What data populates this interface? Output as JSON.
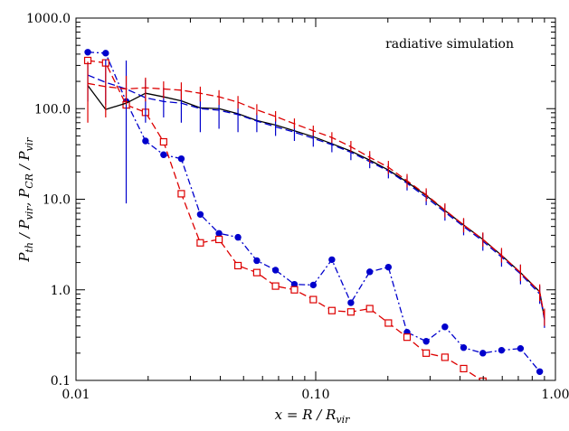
{
  "chart_data": {
    "type": "line",
    "annotation": "radiative simulation",
    "xlabel": {
      "main": "x = R / R",
      "sub": "vir"
    },
    "ylabel": {
      "p1": "P",
      "s1": "th",
      "p2": " / P",
      "s2": "vir",
      "p3": ",  P",
      "s3": "CR",
      "p4": " / P",
      "s4": "vir"
    },
    "xscale": "log",
    "yscale": "log",
    "xlim": [
      0.01,
      1.0
    ],
    "ylim": [
      0.1,
      1000
    ],
    "xticks": [
      0.01,
      0.1,
      1.0
    ],
    "xtick_labels": [
      "0.01",
      "0.10",
      "1.00"
    ],
    "yticks": [
      0.1,
      1,
      10,
      100,
      1000
    ],
    "ytick_labels": [
      "0.1",
      "1.0",
      "10.0",
      "100.0",
      "1000.0"
    ],
    "grid": false,
    "legend": "none",
    "series": [
      {
        "color": "#0000cc",
        "linestyle": "dashdot",
        "marker": "circle-filled",
        "x": [
          0.0112,
          0.0133,
          0.0162,
          0.0195,
          0.0232,
          0.0275,
          0.033,
          0.0395,
          0.0474,
          0.0568,
          0.068,
          0.0815,
          0.0977,
          0.1168,
          0.1402,
          0.168,
          0.201,
          0.2405,
          0.289,
          0.346,
          0.414,
          0.498,
          0.596,
          0.715,
          0.86
        ],
        "y": [
          420,
          410,
          120,
          44,
          31,
          28,
          6.8,
          4.2,
          3.8,
          2.1,
          1.65,
          1.15,
          1.13,
          2.15,
          0.72,
          1.58,
          1.78,
          0.34,
          0.27,
          0.39,
          0.23,
          0.2,
          0.215,
          0.225,
          0.125
        ]
      },
      {
        "color": "#dd0000",
        "linestyle": "dashed",
        "marker": "square-open",
        "x": [
          0.0112,
          0.0133,
          0.0162,
          0.0195,
          0.0232,
          0.0275,
          0.033,
          0.0395,
          0.0474,
          0.0568,
          0.068,
          0.0815,
          0.0977,
          0.1168,
          0.1402,
          0.168,
          0.201,
          0.2405,
          0.289,
          0.346,
          0.414,
          0.498
        ],
        "y": [
          340,
          320,
          110,
          91,
          43,
          11.5,
          3.3,
          3.6,
          1.85,
          1.55,
          1.1,
          1.0,
          0.78,
          0.59,
          0.57,
          0.62,
          0.43,
          0.3,
          0.2,
          0.18,
          0.135,
          0.098
        ]
      },
      {
        "color": "#000000",
        "linestyle": "solid",
        "x": [
          0.0112,
          0.0133,
          0.0162,
          0.0195,
          0.0232,
          0.0275,
          0.033,
          0.0395,
          0.0474,
          0.0568,
          0.068,
          0.0815,
          0.0977,
          0.1168,
          0.1402,
          0.168,
          0.201,
          0.2405,
          0.289,
          0.346,
          0.414,
          0.498,
          0.596,
          0.715,
          0.86,
          0.9
        ],
        "y": [
          180,
          98,
          115,
          148,
          135,
          122,
          102,
          100,
          88,
          74,
          66,
          57,
          49,
          41,
          34,
          27,
          21,
          15.5,
          11,
          7.5,
          5.2,
          3.6,
          2.4,
          1.55,
          0.95,
          0.48
        ]
      },
      {
        "color": "#0000cc",
        "linestyle": "dashed",
        "x": [
          0.0112,
          0.0133,
          0.0162,
          0.0195,
          0.0232,
          0.0275,
          0.033,
          0.0395,
          0.0474,
          0.0568,
          0.068,
          0.0815,
          0.0977,
          0.1168,
          0.1402,
          0.168,
          0.201,
          0.2405,
          0.289,
          0.346,
          0.414,
          0.498,
          0.596,
          0.715,
          0.86,
          0.9
        ],
        "y": [
          235,
          195,
          165,
          132,
          120,
          115,
          100,
          96,
          86,
          73,
          63,
          55,
          47,
          40,
          33,
          26,
          20.5,
          15,
          10.5,
          7.2,
          5.0,
          3.45,
          2.3,
          1.5,
          0.9,
          0.47
        ],
        "errors": {
          "low": [
            120,
            110,
            9,
            70,
            80,
            70,
            55,
            60,
            55,
            55,
            50,
            44,
            38,
            33,
            27,
            22,
            17,
            12.5,
            8.6,
            5.8,
            4.0,
            2.7,
            1.8,
            1.15,
            0.7,
            0.38
          ],
          "high": [
            320,
            350,
            340,
            210,
            170,
            160,
            140,
            130,
            115,
            90,
            78,
            66,
            57,
            48,
            40,
            31,
            24.5,
            18,
            12.5,
            8.7,
            6.1,
            4.2,
            2.8,
            1.9,
            1.1,
            0.6
          ]
        }
      },
      {
        "color": "#dd0000",
        "linestyle": "dashed",
        "x": [
          0.0112,
          0.0133,
          0.0162,
          0.0195,
          0.0232,
          0.0275,
          0.033,
          0.0395,
          0.0474,
          0.0568,
          0.068,
          0.0815,
          0.0977,
          0.1168,
          0.1402,
          0.168,
          0.201,
          0.2405,
          0.289,
          0.346,
          0.414,
          0.498,
          0.596,
          0.715,
          0.86,
          0.9
        ],
        "y": [
          190,
          175,
          165,
          170,
          165,
          160,
          148,
          135,
          118,
          97,
          82,
          68,
          57,
          48,
          38,
          29,
          22.5,
          16,
          11.2,
          7.6,
          5.2,
          3.6,
          2.4,
          1.55,
          0.95,
          0.5
        ],
        "errors": {
          "low": [
            70,
            80,
            110,
            120,
            130,
            125,
            120,
            110,
            100,
            85,
            72,
            60,
            50,
            42,
            33,
            25,
            19,
            13.5,
            9.5,
            6.3,
            4.3,
            3.0,
            2.0,
            1.25,
            0.75,
            0.4
          ],
          "high": [
            330,
            300,
            230,
            220,
            200,
            195,
            175,
            160,
            138,
            112,
            94,
            78,
            65,
            55,
            44,
            34,
            26.5,
            19,
            13.2,
            9.0,
            6.2,
            4.3,
            2.9,
            1.9,
            1.15,
            0.62
          ]
        }
      }
    ]
  }
}
